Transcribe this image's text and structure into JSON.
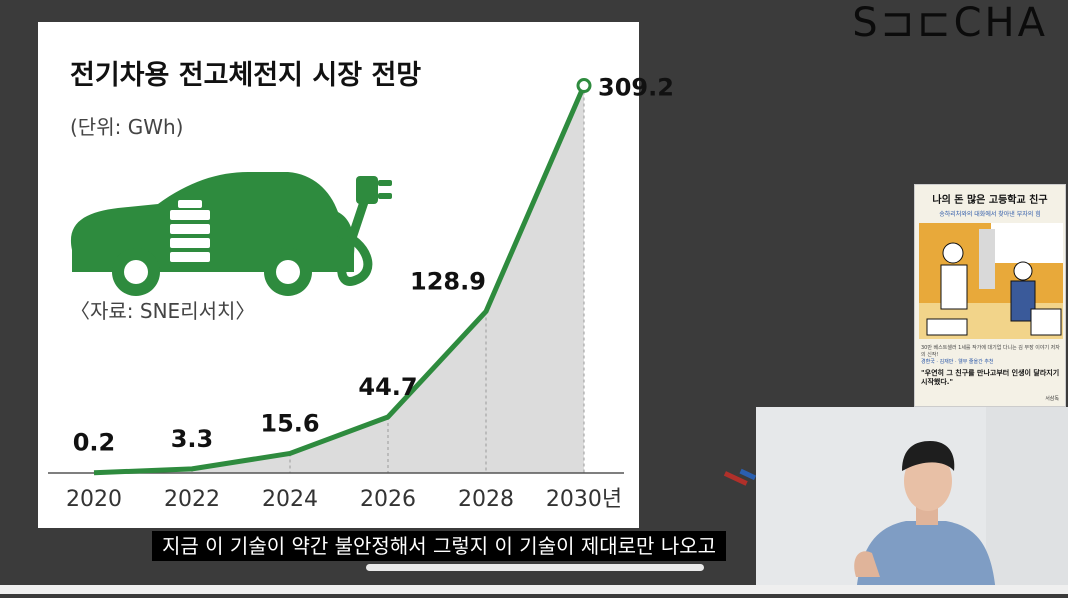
{
  "brand": {
    "logo_text": "S⊐⊏CHA"
  },
  "slide": {
    "title": "전기차용 전고체전지 시장 전망",
    "unit": "(단위: GWh)",
    "source": "〈자료: SNE리서치〉",
    "icon": "electric-car-plug-icon"
  },
  "chart_data": {
    "type": "area",
    "title": "전기차용 전고체전지 시장 전망",
    "unit": "(단위: GWh)",
    "x": [
      2020,
      2022,
      2024,
      2026,
      2028,
      2030
    ],
    "x_tick_labels": [
      "2020",
      "2022",
      "2024",
      "2026",
      "2028",
      "2030년"
    ],
    "series": [
      {
        "values": [
          0.2,
          3.3,
          15.6,
          44.7,
          128.9,
          309.2
        ]
      }
    ],
    "data_labels": [
      "0.2",
      "3.3",
      "15.6",
      "44.7",
      "128.9",
      "309.2"
    ],
    "ylim": [
      0,
      320
    ],
    "grid": "vertical dashed at each x",
    "colors": {
      "line": "#2e8b3e",
      "area": "#dcdcdc"
    }
  },
  "book": {
    "title": "나의 돈 많은 고등학교 친구",
    "subtitle": "송하리처와의 대화에서 찾아낸 부자의 힘",
    "blurb": "30만 베스트셀러 1세를 작가에 대기업 다니는 김 부장 이야기 저자의 신작!",
    "endorsement": "경환국 · 김재만 · 웰무 줄을간 추천",
    "quote": "\"우연히 그 친구를 만나고부터 인생이 달라지기 시작했다.\"",
    "publisher": "서삼독"
  },
  "webcam": {
    "label": "presenter-video"
  },
  "caption": {
    "text": "지금 이 기술이 약간 불안정해서 그렇지 이 기술이 제대로만 나오고"
  },
  "player": {
    "progress": 0.0
  }
}
